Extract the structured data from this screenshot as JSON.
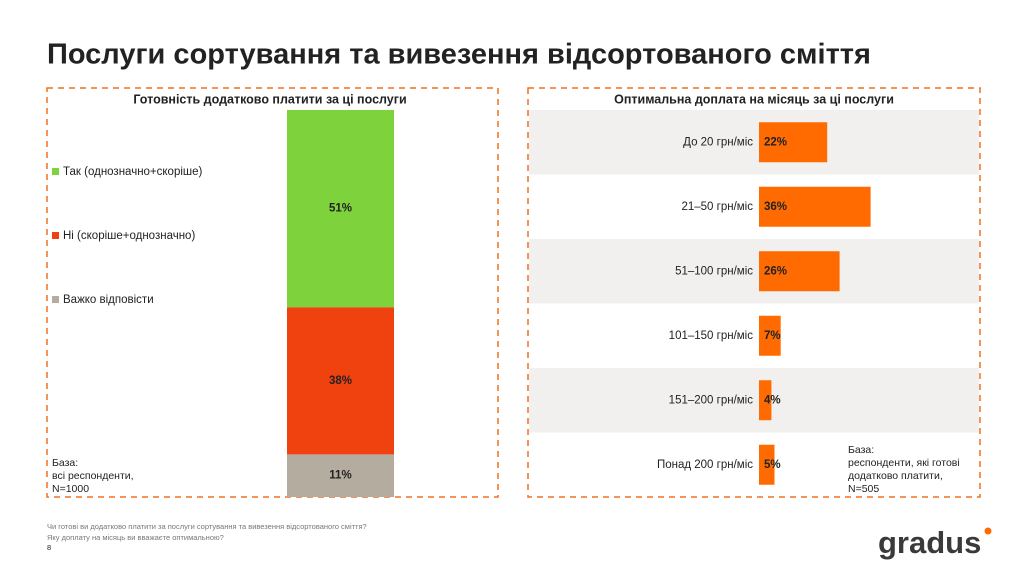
{
  "title": "Послуги сортування та вивезення відсортованого сміття",
  "chart_data": [
    {
      "type": "stacked-bar",
      "title": "Готовність додатково платити за ці послуги",
      "series": [
        {
          "name": "Так (однозначно+скоріше)",
          "color": "#7ed23b",
          "values": [
            51
          ],
          "value_labels": [
            "51%"
          ]
        },
        {
          "name": "Ні (скоріше+однозначно)",
          "color": "#f0420f",
          "values": [
            38
          ],
          "value_labels": [
            "38%"
          ]
        },
        {
          "name": "Важко відповісти",
          "color": "#b5aca0",
          "values": [
            11
          ],
          "value_labels": [
            "11%"
          ]
        }
      ],
      "note": "База:\nвсі респонденти,\nN=1000"
    },
    {
      "type": "hbar",
      "title": "Оптимальна доплата на місяць за ці послуги",
      "categories": [
        "До 20 грн/міс",
        "21–50 грн/міс",
        "51–100 грн/міс",
        "101–150 грн/міс",
        "151–200 грн/міс",
        "Понад 200 грн/міс"
      ],
      "values": [
        22,
        36,
        26,
        7,
        4,
        5
      ],
      "value_labels": [
        "22%",
        "36%",
        "26%",
        "7%",
        "4%",
        "5%"
      ],
      "color": "#ff6b00",
      "note": "База:\nреспонденти, які готові\nдодатково платити,\nN=505"
    }
  ],
  "footnote": [
    "Чи готові ви додатково платити за послуги сортування та вивезення відсортованого сміття?",
    "Яку доплату на місяць ви вважаєте оптимальною?"
  ],
  "page_number": "8",
  "logo": "gradus"
}
